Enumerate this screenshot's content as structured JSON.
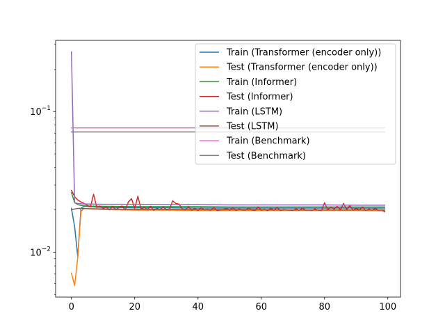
{
  "chart_data": {
    "type": "line",
    "title": "",
    "xlabel": "",
    "ylabel": "",
    "xlim": [
      -5,
      104
    ],
    "ylim": [
      0.0048,
      0.32
    ],
    "yscale": "log",
    "grid": false,
    "legend_position": "top-right",
    "x_ticks": [
      0,
      20,
      40,
      60,
      80,
      100
    ],
    "x_tick_labels": [
      "0",
      "20",
      "40",
      "60",
      "80",
      "100"
    ],
    "y_major_ticks": [
      0.01,
      0.1
    ],
    "y_tick_labels": [
      "10^{-2}",
      "10^{-1}"
    ],
    "series": [
      {
        "name": "Train (Transformer (encoder only))",
        "color": "#1f77b4",
        "points": [
          [
            0,
            0.0205
          ],
          [
            1,
            0.0152
          ],
          [
            2,
            0.0093
          ],
          [
            3,
            0.0205
          ],
          [
            4,
            0.0212
          ],
          [
            5,
            0.0211
          ],
          [
            10,
            0.0208
          ],
          [
            15,
            0.0208
          ],
          [
            20,
            0.0207
          ],
          [
            30,
            0.0207
          ],
          [
            40,
            0.0206
          ],
          [
            50,
            0.0206
          ],
          [
            60,
            0.0206
          ],
          [
            70,
            0.0206
          ],
          [
            80,
            0.0206
          ],
          [
            90,
            0.0206
          ],
          [
            99,
            0.0206
          ]
        ]
      },
      {
        "name": "Test (Transformer (encoder only))",
        "color": "#ff7f0e",
        "points": [
          [
            0,
            0.0071
          ],
          [
            1,
            0.0058
          ],
          [
            2,
            0.0092
          ],
          [
            3,
            0.0195
          ],
          [
            4,
            0.0205
          ],
          [
            5,
            0.0204
          ],
          [
            10,
            0.0201
          ],
          [
            15,
            0.02
          ],
          [
            20,
            0.0199
          ],
          [
            30,
            0.0199
          ],
          [
            40,
            0.0198
          ],
          [
            50,
            0.0198
          ],
          [
            60,
            0.0198
          ],
          [
            70,
            0.0198
          ],
          [
            80,
            0.0198
          ],
          [
            90,
            0.0198
          ],
          [
            99,
            0.0197
          ]
        ]
      },
      {
        "name": "Train (Informer)",
        "color": "#2ca02c",
        "points": [
          [
            0,
            0.0265
          ],
          [
            1,
            0.0225
          ],
          [
            2,
            0.0218
          ],
          [
            3,
            0.0215
          ],
          [
            5,
            0.0213
          ],
          [
            10,
            0.0212
          ],
          [
            20,
            0.0211
          ],
          [
            30,
            0.0211
          ],
          [
            40,
            0.0211
          ],
          [
            50,
            0.021
          ],
          [
            60,
            0.021
          ],
          [
            70,
            0.021
          ],
          [
            80,
            0.021
          ],
          [
            90,
            0.021
          ],
          [
            99,
            0.021
          ]
        ]
      },
      {
        "name": "Test (Informer)",
        "color": "#d62728",
        "points": [
          [
            0,
            0.0275
          ],
          [
            1,
            0.0248
          ],
          [
            2,
            0.0235
          ],
          [
            3,
            0.0228
          ],
          [
            4,
            0.0222
          ],
          [
            5,
            0.0215
          ],
          [
            6,
            0.021
          ],
          [
            7,
            0.0258
          ],
          [
            8,
            0.0208
          ],
          [
            9,
            0.0213
          ],
          [
            10,
            0.0205
          ],
          [
            11,
            0.021
          ],
          [
            12,
            0.02
          ],
          [
            13,
            0.0212
          ],
          [
            14,
            0.0201
          ],
          [
            15,
            0.0208
          ],
          [
            16,
            0.0213
          ],
          [
            17,
            0.02
          ],
          [
            18,
            0.0228
          ],
          [
            19,
            0.024
          ],
          [
            20,
            0.0205
          ],
          [
            21,
            0.025
          ],
          [
            22,
            0.0202
          ],
          [
            23,
            0.0208
          ],
          [
            24,
            0.0201
          ],
          [
            25,
            0.0212
          ],
          [
            26,
            0.0199
          ],
          [
            27,
            0.0205
          ],
          [
            28,
            0.0201
          ],
          [
            29,
            0.021
          ],
          [
            30,
            0.02
          ],
          [
            31,
            0.0203
          ],
          [
            32,
            0.0232
          ],
          [
            33,
            0.0222
          ],
          [
            34,
            0.022
          ],
          [
            35,
            0.0203
          ],
          [
            36,
            0.02
          ],
          [
            37,
            0.021
          ],
          [
            38,
            0.0199
          ],
          [
            39,
            0.0205
          ],
          [
            40,
            0.0198
          ],
          [
            41,
            0.0207
          ],
          [
            42,
            0.02
          ],
          [
            43,
            0.0202
          ],
          [
            44,
            0.0199
          ],
          [
            45,
            0.0208
          ],
          [
            46,
            0.0198
          ],
          [
            47,
            0.02
          ],
          [
            48,
            0.0201
          ],
          [
            49,
            0.0205
          ],
          [
            50,
            0.0199
          ],
          [
            51,
            0.0207
          ],
          [
            52,
            0.0198
          ],
          [
            53,
            0.0203
          ],
          [
            54,
            0.02
          ],
          [
            55,
            0.0199
          ],
          [
            56,
            0.0206
          ],
          [
            57,
            0.02
          ],
          [
            58,
            0.0198
          ],
          [
            59,
            0.021
          ],
          [
            60,
            0.0199
          ],
          [
            61,
            0.0202
          ],
          [
            62,
            0.0198
          ],
          [
            63,
            0.0205
          ],
          [
            64,
            0.0199
          ],
          [
            65,
            0.0208
          ],
          [
            66,
            0.0198
          ],
          [
            67,
            0.0201
          ],
          [
            68,
            0.02
          ],
          [
            69,
            0.0199
          ],
          [
            70,
            0.0198
          ],
          [
            71,
            0.0204
          ],
          [
            72,
            0.0198
          ],
          [
            73,
            0.0206
          ],
          [
            74,
            0.0199
          ],
          [
            75,
            0.02
          ],
          [
            76,
            0.0198
          ],
          [
            77,
            0.0203
          ],
          [
            78,
            0.0199
          ],
          [
            79,
            0.0198
          ],
          [
            80,
            0.0225
          ],
          [
            81,
            0.02
          ],
          [
            82,
            0.021
          ],
          [
            83,
            0.0203
          ],
          [
            84,
            0.0212
          ],
          [
            85,
            0.02
          ],
          [
            86,
            0.0222
          ],
          [
            87,
            0.0201
          ],
          [
            88,
            0.0215
          ],
          [
            89,
            0.0199
          ],
          [
            90,
            0.0205
          ],
          [
            91,
            0.02
          ],
          [
            92,
            0.021
          ],
          [
            93,
            0.0198
          ],
          [
            94,
            0.0203
          ],
          [
            95,
            0.0199
          ],
          [
            96,
            0.0205
          ],
          [
            97,
            0.0199
          ],
          [
            98,
            0.02
          ],
          [
            99,
            0.0194
          ]
        ]
      },
      {
        "name": "Train (LSTM)",
        "color": "#9467bd",
        "points": [
          [
            0,
            0.265
          ],
          [
            1,
            0.0225
          ],
          [
            2,
            0.0222
          ],
          [
            3,
            0.0221
          ],
          [
            5,
            0.022
          ],
          [
            10,
            0.0219
          ],
          [
            20,
            0.0219
          ],
          [
            30,
            0.0218
          ],
          [
            40,
            0.0218
          ],
          [
            50,
            0.0217
          ],
          [
            60,
            0.0217
          ],
          [
            70,
            0.0217
          ],
          [
            80,
            0.0217
          ],
          [
            90,
            0.0216
          ],
          [
            99,
            0.0216
          ]
        ]
      },
      {
        "name": "Test (LSTM)",
        "color": "#8c564b",
        "points": [
          [
            0,
            0.02
          ],
          [
            1,
            0.0203
          ],
          [
            2,
            0.0205
          ],
          [
            3,
            0.0205
          ],
          [
            5,
            0.0204
          ],
          [
            10,
            0.0203
          ],
          [
            20,
            0.0202
          ],
          [
            30,
            0.0202
          ],
          [
            40,
            0.0201
          ],
          [
            50,
            0.0201
          ],
          [
            60,
            0.0201
          ],
          [
            70,
            0.02
          ],
          [
            80,
            0.02
          ],
          [
            90,
            0.02
          ],
          [
            99,
            0.02
          ]
        ]
      },
      {
        "name": "Train (Benchmark)",
        "color": "#e377c2",
        "points": [
          [
            0,
            0.0765
          ],
          [
            99,
            0.0765
          ]
        ]
      },
      {
        "name": "Test (Benchmark)",
        "color": "#7f7f7f",
        "points": [
          [
            0,
            0.0715
          ],
          [
            99,
            0.0715
          ]
        ]
      }
    ]
  }
}
